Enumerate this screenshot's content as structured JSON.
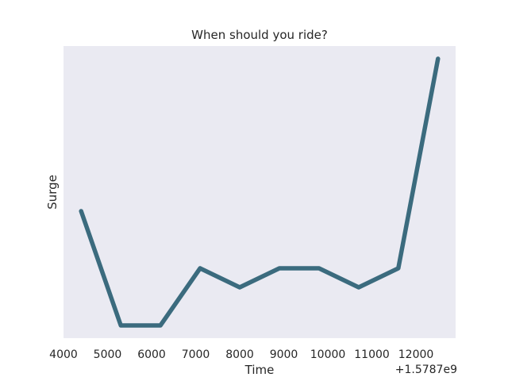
{
  "chart_data": {
    "type": "line",
    "title": "When should you ride?",
    "xlabel": "Time",
    "ylabel": "Surge",
    "x_offset_label": "+1.5787e9",
    "x_ticks": [
      4000,
      5000,
      6000,
      7000,
      8000,
      9000,
      10000,
      11000,
      12000
    ],
    "xlim": [
      4000,
      12900
    ],
    "ylim": [
      0.92,
      2.4
    ],
    "y_ticks_shown": false,
    "grid": false,
    "legend": "none",
    "series": [
      {
        "color": "#3b6b7e",
        "x": [
          4400,
          5300,
          6200,
          7100,
          8000,
          8900,
          9800,
          10700,
          11600,
          12500
        ],
        "y": [
          1.6,
          1.0,
          1.0,
          1.3,
          1.2,
          1.3,
          1.3,
          1.2,
          1.3,
          2.4
        ]
      }
    ]
  },
  "colors": {
    "plot_background": "#eaeaf2",
    "line": "#3b6b7e",
    "text": "#262626"
  }
}
